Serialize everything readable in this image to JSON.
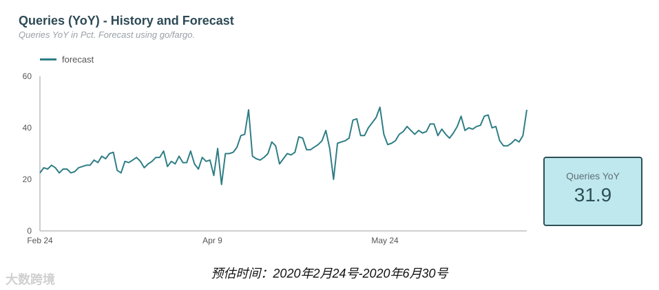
{
  "header": {
    "title": "Queries (YoY) - History and Forecast",
    "subtitle": "Queries YoY in Pct. Forecast using go/fargo."
  },
  "kpi": {
    "label": "Queries YoY",
    "value": "31.9"
  },
  "footer": {
    "caption": "预估时间：2020年2月24号-2020年6月30号"
  },
  "watermark": {
    "text": "大数跨境"
  },
  "colors": {
    "line": "#2e7d85",
    "kpi_bg": "#bfe8ee",
    "kpi_border": "#2d4f55",
    "title": "#2d4a55"
  },
  "chart_data": {
    "type": "line",
    "series": [
      {
        "name": "forecast",
        "values": [
          22.5,
          24.5,
          24,
          25.5,
          24.5,
          22.5,
          24,
          24,
          22.5,
          23,
          24.5,
          25,
          25.5,
          25.5,
          27.5,
          26.5,
          29,
          28,
          30,
          30.5,
          23.5,
          22.5,
          27,
          26.5,
          27.5,
          28.5,
          27,
          24.5,
          26,
          27,
          28.5,
          28.5,
          31,
          25,
          27,
          26,
          29,
          26.5,
          26.5,
          31,
          26,
          24,
          28.5,
          27,
          27.5,
          21.5,
          32,
          18,
          30,
          30,
          30.5,
          32.5,
          37,
          37.5,
          47,
          29,
          28,
          27.5,
          28.5,
          30,
          34.5,
          33,
          26,
          28,
          30,
          29.5,
          30.5,
          36.5,
          36,
          31.5,
          31.5,
          32.5,
          33.5,
          35,
          39,
          32,
          20,
          34,
          34.5,
          35,
          36,
          43,
          43.5,
          37,
          37,
          40,
          42,
          44,
          48,
          37.5,
          33.5,
          34,
          35,
          37.5,
          38.5,
          40.5,
          39,
          37.5,
          39,
          38,
          38.5,
          41.5,
          41.5,
          37,
          39.5,
          37.5,
          36,
          38,
          40.5,
          44.5,
          39,
          40,
          39.5,
          40.5,
          41,
          44.5,
          45,
          40,
          40.5,
          35,
          33,
          33,
          34,
          35.5,
          34.5,
          37,
          47
        ]
      }
    ],
    "x_start": "2020-02-24",
    "x_end": "2020-06-30",
    "x_ticks": [
      "Feb 24",
      "Apr 9",
      "May 24"
    ],
    "y_ticks": [
      0,
      20,
      40,
      60
    ],
    "ylim": [
      0,
      60
    ],
    "legend_position": "top-left",
    "grid": false
  }
}
